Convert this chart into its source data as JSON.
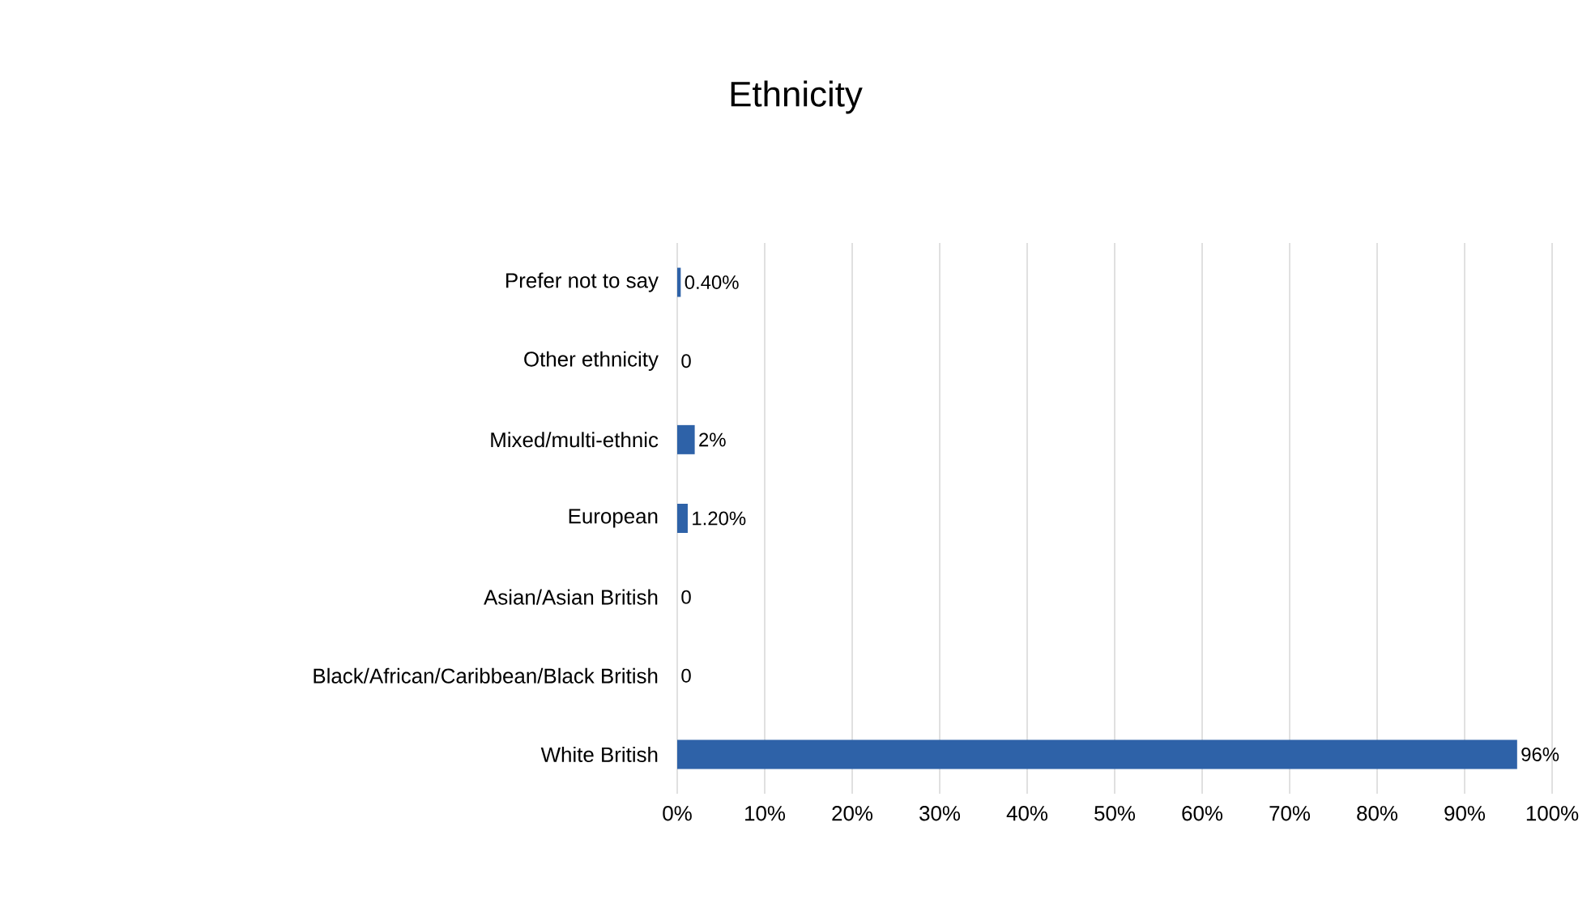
{
  "chart_data": {
    "type": "bar",
    "orientation": "horizontal",
    "title": "Ethnicity",
    "categories": [
      "Prefer not to say",
      "Other ethnicity",
      "Mixed/multi-ethnic",
      "European",
      "Asian/Asian British",
      "Black/African/Caribbean/Black British",
      "White British"
    ],
    "values": [
      0.4,
      0,
      2,
      1.2,
      0,
      0,
      96
    ],
    "value_labels": [
      "0.40%",
      "0",
      "2%",
      "1.20%",
      "0",
      "0",
      "96%"
    ],
    "color": "#2e62a8",
    "xlim": [
      0,
      100
    ],
    "xticks": [
      {
        "value": 0,
        "label": "0%"
      },
      {
        "value": 10,
        "label": "10%"
      },
      {
        "value": 20,
        "label": "20%"
      },
      {
        "value": 30,
        "label": "30%"
      },
      {
        "value": 40,
        "label": "40%"
      },
      {
        "value": 50,
        "label": "50%"
      },
      {
        "value": 60,
        "label": "60%"
      },
      {
        "value": 70,
        "label": "70%"
      },
      {
        "value": 80,
        "label": "80%"
      },
      {
        "value": 90,
        "label": "90%"
      },
      {
        "value": 100,
        "label": "100%"
      }
    ],
    "grid": "x"
  }
}
